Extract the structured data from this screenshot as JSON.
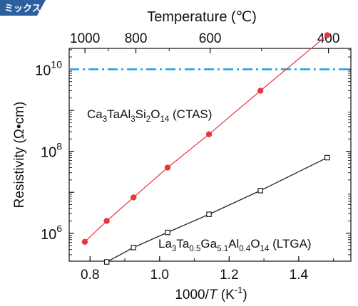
{
  "badge": {
    "text": "ミックス",
    "color": "#2c5f9e"
  },
  "chart_data": {
    "type": "scatter",
    "x_scale": "linear",
    "y_scale": "log",
    "xlabel": {
      "prefix": "1000/",
      "italic": "T",
      "suffix": " (K",
      "sup": "-1",
      "end": ")"
    },
    "ylabel": "Resistivity (Ω•cm)",
    "top_axis_label": "Temperature (℃)",
    "xlim": [
      0.74,
      1.55
    ],
    "ylim_exponent": [
      5.32,
      10.51
    ],
    "x_ticks": [
      {
        "value": 0.8,
        "label": "0.8"
      },
      {
        "value": 1.0,
        "label": "1.0"
      },
      {
        "value": 1.2,
        "label": "1.2"
      },
      {
        "value": 1.4,
        "label": "1.4"
      }
    ],
    "y_ticks": [
      {
        "exponent": 6,
        "base": "10",
        "sup": "6"
      },
      {
        "exponent": 8,
        "base": "10",
        "sup": "8"
      },
      {
        "exponent": 10,
        "base": "10",
        "sup": "10"
      }
    ],
    "top_ticks_celsius": [
      {
        "celsius": 1000,
        "label": "1000"
      },
      {
        "celsius": 800,
        "label": "800"
      },
      {
        "celsius": 600,
        "label": "600"
      },
      {
        "celsius": 400,
        "label": "400"
      }
    ],
    "grid": false,
    "reference_line": {
      "value": 10000000000.0,
      "color": "#1aa3d6",
      "style": "dash-dot"
    },
    "series": [
      {
        "name": "CTAS",
        "label_parts": [
          {
            "t": "Ca"
          },
          {
            "t": "3",
            "sub": true
          },
          {
            "t": "TaAl"
          },
          {
            "t": "3",
            "sub": true
          },
          {
            "t": "Si"
          },
          {
            "t": "2",
            "sub": true
          },
          {
            "t": "O"
          },
          {
            "t": "14",
            "sub": true
          },
          {
            "t": " (CTAS)"
          }
        ],
        "color": "#e8363d",
        "marker": "filled-circle",
        "x": [
          0.785,
          0.848,
          0.925,
          1.023,
          1.142,
          1.29,
          1.482
        ],
        "y": [
          620000.0,
          2000000.0,
          7500000.0,
          40000000.0,
          260000000.0,
          3000000000.0,
          68000000000.0
        ]
      },
      {
        "name": "LTGA",
        "label_parts": [
          {
            "t": "La"
          },
          {
            "t": "3",
            "sub": true
          },
          {
            "t": "Ta"
          },
          {
            "t": "0.5",
            "sub": true
          },
          {
            "t": "Ga"
          },
          {
            "t": "5.1",
            "sub": true
          },
          {
            "t": "Al"
          },
          {
            "t": "0.4",
            "sub": true
          },
          {
            "t": "O"
          },
          {
            "t": "14",
            "sub": true
          },
          {
            "t": " (LTGA)"
          }
        ],
        "color": "#111111",
        "marker": "open-square",
        "x": [
          0.848,
          0.925,
          1.023,
          1.142,
          1.29,
          1.482
        ],
        "y": [
          200000.0,
          450000.0,
          1050000.0,
          2900000.0,
          11000000.0,
          70000000.0
        ]
      }
    ]
  }
}
